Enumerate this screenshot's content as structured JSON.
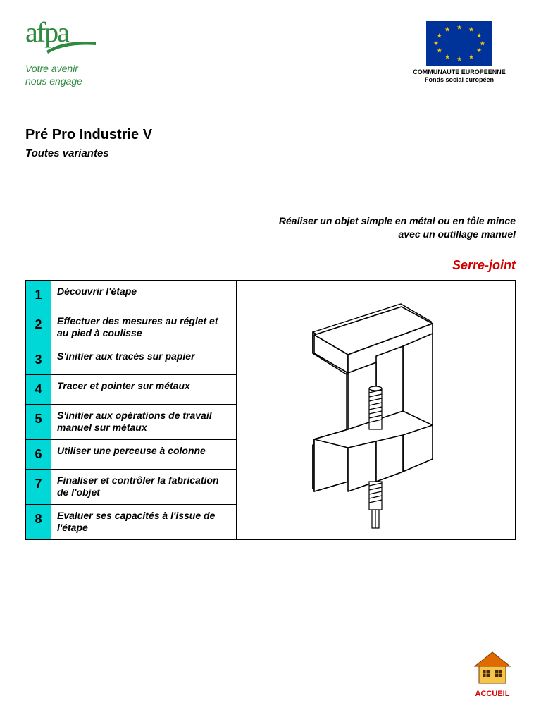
{
  "logo_left": {
    "brand": "afpa",
    "tagline_line1": "Votre avenir",
    "tagline_line2": "nous engage",
    "brand_color": "#2d8a3e"
  },
  "logo_right": {
    "caption_line1": "COMMUNAUTE EUROPEENNE",
    "caption_line2": "Fonds social européen",
    "flag_bg": "#003399",
    "star_color": "#ffcc00"
  },
  "title": {
    "main": "Pré Pro Industrie V",
    "sub": "Toutes variantes"
  },
  "mid": {
    "line1": "Réaliser un objet simple en métal ou en tôle mince",
    "line2": "avec un outillage manuel"
  },
  "object_name": "Serre-joint",
  "object_name_color": "#d40000",
  "steps": [
    {
      "n": "1",
      "text": "Découvrir l'étape"
    },
    {
      "n": "2",
      "text": "Effectuer des mesures au réglet et au pied à coulisse"
    },
    {
      "n": "3",
      "text": "S'initier aux tracés sur papier"
    },
    {
      "n": "4",
      "text": "Tracer et pointer sur métaux"
    },
    {
      "n": "5",
      "text": "S'initier aux opérations de travail manuel sur métaux"
    },
    {
      "n": "6",
      "text": "Utiliser une perceuse à colonne"
    },
    {
      "n": "7",
      "text": "Finaliser et contrôler la fabrication de l'objet"
    },
    {
      "n": "8",
      "text": "Evaluer ses capacités à l'issue de l'étape"
    }
  ],
  "step_num_bg": "#00d7d7",
  "accueil": {
    "label": "ACCUEIL",
    "roof_color": "#e06a00",
    "wall_color": "#f7c44a",
    "label_color": "#d40000"
  },
  "diagram": {
    "stroke": "#000000",
    "fill": "#ffffff"
  }
}
